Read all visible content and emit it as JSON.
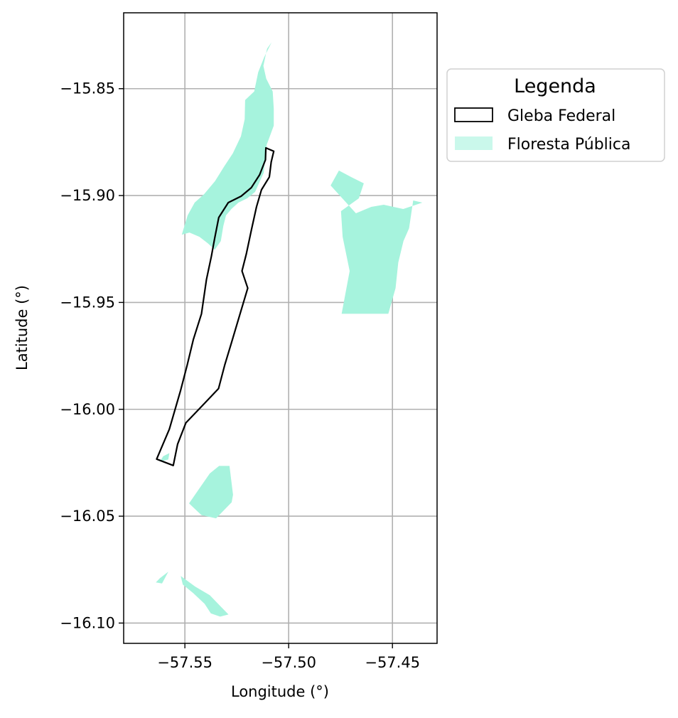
{
  "chart_data": {
    "type": "map",
    "xlabel": "Longitude (°)",
    "ylabel": "Latitude (°)",
    "xlim": [
      -57.5795,
      -57.4285
    ],
    "ylim": [
      -16.1095,
      -15.8145
    ],
    "x_ticks": [
      {
        "value": -57.55,
        "label": "−57.55"
      },
      {
        "value": -57.5,
        "label": "−57.50"
      },
      {
        "value": -57.45,
        "label": "−57.45"
      }
    ],
    "y_ticks": [
      {
        "value": -15.85,
        "label": "−15.85"
      },
      {
        "value": -15.9,
        "label": "−15.90"
      },
      {
        "value": -15.95,
        "label": "−15.95"
      },
      {
        "value": -16.0,
        "label": "−16.00"
      },
      {
        "value": -16.05,
        "label": "−16.05"
      },
      {
        "value": -16.1,
        "label": "−16.10"
      }
    ],
    "grid": true,
    "legend": {
      "title": "Legenda",
      "placement": "outside-right",
      "entries": [
        {
          "label": "Gleba Federal",
          "style": "outline",
          "color": "#000000"
        },
        {
          "label": "Floresta Pública",
          "style": "fill",
          "color": "#a6f3dd"
        }
      ]
    },
    "layers": {
      "floresta_publica": {
        "color": "#a6f3dd",
        "polygons": [
          [
            [
              -57.5082,
              -15.8283
            ],
            [
              -57.5104,
              -15.8313
            ],
            [
              -57.5113,
              -15.8353
            ],
            [
              -57.5122,
              -15.8393
            ],
            [
              -57.5108,
              -15.8453
            ],
            [
              -57.5077,
              -15.8513
            ],
            [
              -57.5072,
              -15.8593
            ],
            [
              -57.5072,
              -15.8673
            ],
            [
              -57.5106,
              -15.8763
            ],
            [
              -57.512,
              -15.8893
            ],
            [
              -57.5162,
              -15.8983
            ],
            [
              -57.52,
              -15.9013
            ],
            [
              -57.5242,
              -15.9033
            ],
            [
              -57.5276,
              -15.9063
            ],
            [
              -57.5302,
              -15.9093
            ],
            [
              -57.5315,
              -15.9143
            ],
            [
              -57.5327,
              -15.9213
            ],
            [
              -57.5356,
              -15.9253
            ],
            [
              -57.539,
              -15.9223
            ],
            [
              -57.543,
              -15.9193
            ],
            [
              -57.5478,
              -15.9173
            ],
            [
              -57.5515,
              -15.9183
            ],
            [
              -57.5487,
              -15.9093
            ],
            [
              -57.5453,
              -15.9033
            ],
            [
              -57.5407,
              -15.8993
            ],
            [
              -57.5355,
              -15.8933
            ],
            [
              -57.531,
              -15.8863
            ],
            [
              -57.5269,
              -15.8803
            ],
            [
              -57.523,
              -15.8723
            ],
            [
              -57.5212,
              -15.8643
            ],
            [
              -57.521,
              -15.8553
            ],
            [
              -57.5166,
              -15.8513
            ],
            [
              -57.5147,
              -15.8423
            ],
            [
              -57.5118,
              -15.8353
            ]
          ],
          [
            [
              -57.4798,
              -15.8953
            ],
            [
              -57.4758,
              -15.8883
            ],
            [
              -57.47,
              -15.8913
            ],
            [
              -57.4638,
              -15.8943
            ],
            [
              -57.4662,
              -15.9013
            ],
            [
              -57.4748,
              -15.9073
            ],
            [
              -57.474,
              -15.9193
            ],
            [
              -57.4706,
              -15.9353
            ],
            [
              -57.4745,
              -15.9553
            ],
            [
              -57.452,
              -15.9553
            ],
            [
              -57.4485,
              -15.9433
            ],
            [
              -57.4472,
              -15.9313
            ],
            [
              -57.4447,
              -15.9213
            ],
            [
              -57.442,
              -15.9153
            ],
            [
              -57.44,
              -15.9023
            ],
            [
              -57.4356,
              -15.9033
            ],
            [
              -57.4448,
              -15.9063
            ],
            [
              -57.4542,
              -15.9043
            ],
            [
              -57.4602,
              -15.9053
            ],
            [
              -57.4676,
              -15.9083
            ]
          ],
          [
            [
              -57.5335,
              -16.0265
            ],
            [
              -57.5285,
              -16.0265
            ],
            [
              -57.5268,
              -16.04
            ],
            [
              -57.5275,
              -16.0435
            ],
            [
              -57.535,
              -16.051
            ],
            [
              -57.542,
              -16.0495
            ],
            [
              -57.548,
              -16.044
            ],
            [
              -57.543,
              -16.037
            ],
            [
              -57.538,
              -16.03
            ]
          ],
          [
            [
              -57.5575,
              -16.0205
            ],
            [
              -57.5605,
              -16.022
            ],
            [
              -57.562,
              -16.0245
            ],
            [
              -57.558,
              -16.0235
            ]
          ],
          [
            [
              -57.558,
              -16.076
            ],
            [
              -57.562,
              -16.079
            ],
            [
              -57.564,
              -16.081
            ],
            [
              -57.561,
              -16.0815
            ]
          ],
          [
            [
              -57.552,
              -16.078
            ],
            [
              -57.545,
              -16.083
            ],
            [
              -57.538,
              -16.087
            ],
            [
              -57.533,
              -16.092
            ],
            [
              -57.529,
              -16.096
            ],
            [
              -57.533,
              -16.097
            ],
            [
              -57.5375,
              -16.0955
            ],
            [
              -57.5405,
              -16.091
            ],
            [
              -57.546,
              -16.086
            ],
            [
              -57.551,
              -16.082
            ]
          ]
        ]
      },
      "gleba_federal": {
        "color": "#000000",
        "polygon": [
          [
            -57.511,
            -15.8777
          ],
          [
            -57.5072,
            -15.8793
          ],
          [
            -57.5084,
            -15.8843
          ],
          [
            -57.5093,
            -15.8913
          ],
          [
            -57.5131,
            -15.8973
          ],
          [
            -57.5155,
            -15.9053
          ],
          [
            -57.518,
            -15.9163
          ],
          [
            -57.5204,
            -15.9273
          ],
          [
            -57.5225,
            -15.9353
          ],
          [
            -57.5197,
            -15.9433
          ],
          [
            -57.5234,
            -15.9553
          ],
          [
            -57.5277,
            -15.9693
          ],
          [
            -57.5308,
            -15.9793
          ],
          [
            -57.5338,
            -15.9903
          ],
          [
            -57.5416,
            -15.9983
          ],
          [
            -57.5495,
            -16.0063
          ],
          [
            -57.5535,
            -16.0163
          ],
          [
            -57.5556,
            -16.0263
          ],
          [
            -57.5636,
            -16.0233
          ],
          [
            -57.5575,
            -16.0093
          ],
          [
            -57.5521,
            -15.9913
          ],
          [
            -57.5489,
            -15.9793
          ],
          [
            -57.5459,
            -15.9673
          ],
          [
            -57.542,
            -15.9553
          ],
          [
            -57.5396,
            -15.9393
          ],
          [
            -57.5372,
            -15.9283
          ],
          [
            -57.5357,
            -15.9203
          ],
          [
            -57.5337,
            -15.9103
          ],
          [
            -57.5291,
            -15.9033
          ],
          [
            -57.5229,
            -15.9003
          ],
          [
            -57.518,
            -15.8963
          ],
          [
            -57.514,
            -15.8903
          ],
          [
            -57.5112,
            -15.8833
          ]
        ]
      }
    }
  }
}
